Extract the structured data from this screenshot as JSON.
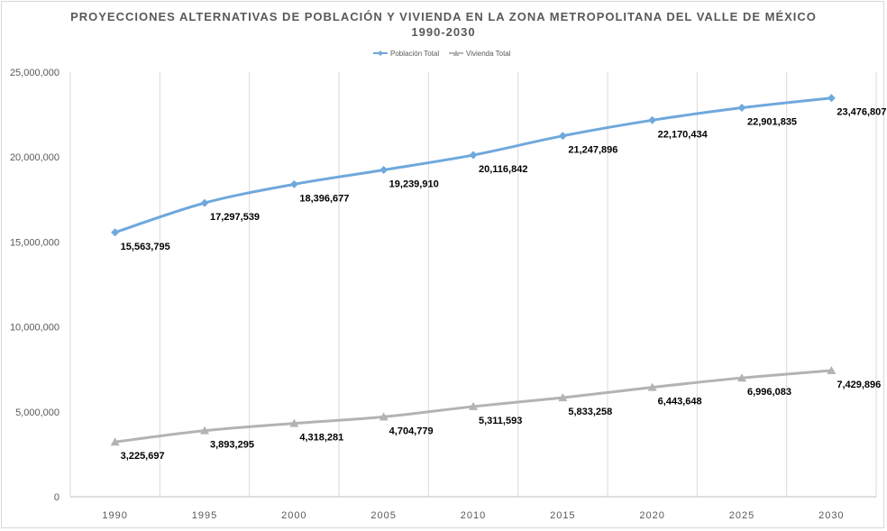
{
  "chart_data": {
    "type": "line",
    "title_line1": "PROYECCIONES ALTERNATIVAS DE POBLACIÓN Y VIVIENDA EN LA ZONA METROPOLITANA DEL VALLE DE MÉXICO",
    "title_line2": "1990-2030",
    "categories": [
      "1990",
      "1995",
      "2000",
      "2005",
      "2010",
      "2015",
      "2020",
      "2025",
      "2030"
    ],
    "ylim": [
      0,
      25000000
    ],
    "y_ticks": [
      0,
      5000000,
      10000000,
      15000000,
      20000000,
      25000000
    ],
    "y_tick_labels": [
      "0",
      "5,000,000",
      "10,000,000",
      "15,000,000",
      "20,000,000",
      "25,000,000"
    ],
    "grid": "vertical",
    "legend_position": "top",
    "series": [
      {
        "name": "Población Total",
        "color": "#6fa8dc",
        "marker": "diamond",
        "values": [
          15563795,
          17297539,
          18396677,
          19239910,
          20116842,
          21247896,
          22170434,
          22901835,
          23476807
        ],
        "labels": [
          "15,563,795",
          "17,297,539",
          "18,396,677",
          "19,239,910",
          "20,116,842",
          "21,247,896",
          "22,170,434",
          "22,901,835",
          "23,476,807"
        ]
      },
      {
        "name": "Vivienda Total",
        "color": "#b3b3b3",
        "marker": "triangle",
        "values": [
          3225697,
          3893295,
          4318281,
          4704779,
          5311593,
          5833258,
          6443648,
          6996083,
          7429896
        ],
        "labels": [
          "3,225,697",
          "3,893,295",
          "4,318,281",
          "4,704,779",
          "5,311,593",
          "5,833,258",
          "6,443,648",
          "6,996,083",
          "7,429,896"
        ]
      }
    ]
  }
}
